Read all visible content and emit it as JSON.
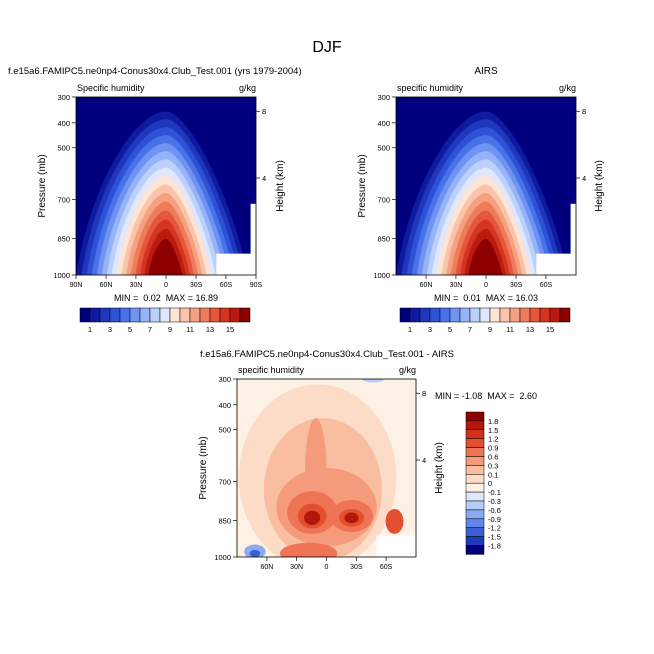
{
  "figure_title": "DJF",
  "chart_data": [
    {
      "type": "heatmap",
      "title": "f.e15a6.FAMIPC5.ne0np4-Conus30x4.Club_Test.001 (yrs 1979-2004)",
      "left_label": "Specific humidity",
      "units": "g/kg",
      "ylabel": "Pressure (mb)",
      "ylabel_right": "Height (km)",
      "y_ticks": [
        "300",
        "400",
        "500",
        "700",
        "850",
        "1000"
      ],
      "y_ticks_right": [
        "8",
        "4"
      ],
      "x_ticks": [
        "90N",
        "60N",
        "30N",
        "0",
        "30S",
        "60S",
        "90S"
      ],
      "stats": "MIN =  0.02  MAX = 16.89",
      "peak_value": 16.89
    },
    {
      "type": "heatmap",
      "title": "AIRS",
      "left_label": "specific humidity",
      "units": "g/kg",
      "ylabel": "Pressure (mb)",
      "ylabel_right": "Height (km)",
      "y_ticks": [
        "300",
        "400",
        "500",
        "700",
        "850",
        "1000"
      ],
      "y_ticks_right": [
        "8",
        "4"
      ],
      "x_ticks": [
        "60N",
        "30N",
        "0",
        "30S",
        "60S"
      ],
      "stats": "MIN =  0.01  MAX = 16.03",
      "peak_value": 16.03
    },
    {
      "type": "heatmap",
      "title": "f.e15a6.FAMIPC5.ne0np4-Conus30x4.Club_Test.001 - AIRS",
      "left_label": "specific humidity",
      "units": "g/kg",
      "ylabel": "Pressure (mb)",
      "ylabel_right": "Height (km)",
      "y_ticks": [
        "300",
        "400",
        "500",
        "700",
        "850",
        "1000"
      ],
      "y_ticks_right": [
        "8",
        "4"
      ],
      "x_ticks": [
        "60N",
        "30N",
        "0",
        "30S",
        "60S"
      ],
      "stats": "MIN = -1.08  MAX =  2.60"
    }
  ],
  "colorbar_top": {
    "labels": [
      "1",
      "3",
      "5",
      "7",
      "9",
      "11",
      "13",
      "15"
    ],
    "colors": [
      "#00007f",
      "#0e1aa0",
      "#1f37bd",
      "#2e52d6",
      "#4a72e8",
      "#6e93f2",
      "#94b3f8",
      "#bcd0fb",
      "#dfe7fd",
      "#fde4d4",
      "#fac4aa",
      "#f5a080",
      "#ee7c5b",
      "#e4573b",
      "#d43520",
      "#bb1a0e",
      "#8c0000"
    ]
  },
  "colorbar_diff": {
    "labels": [
      "1.8",
      "1.5",
      "1.2",
      "0.9",
      "0.6",
      "0.3",
      "0.1",
      "0",
      "-0.1",
      "-0.3",
      "-0.6",
      "-0.9",
      "-1.2",
      "-1.5",
      "-1.8"
    ],
    "colors": [
      "#8c0000",
      "#b5160c",
      "#d1301b",
      "#e2502f",
      "#ee7455",
      "#f59a7b",
      "#f9bd9f",
      "#fcdcc6",
      "#fdf0e4",
      "#dfe7fd",
      "#b6ccf9",
      "#8aaaf2",
      "#5f86e6",
      "#3a60d4",
      "#1f3aba",
      "#00007f"
    ]
  }
}
